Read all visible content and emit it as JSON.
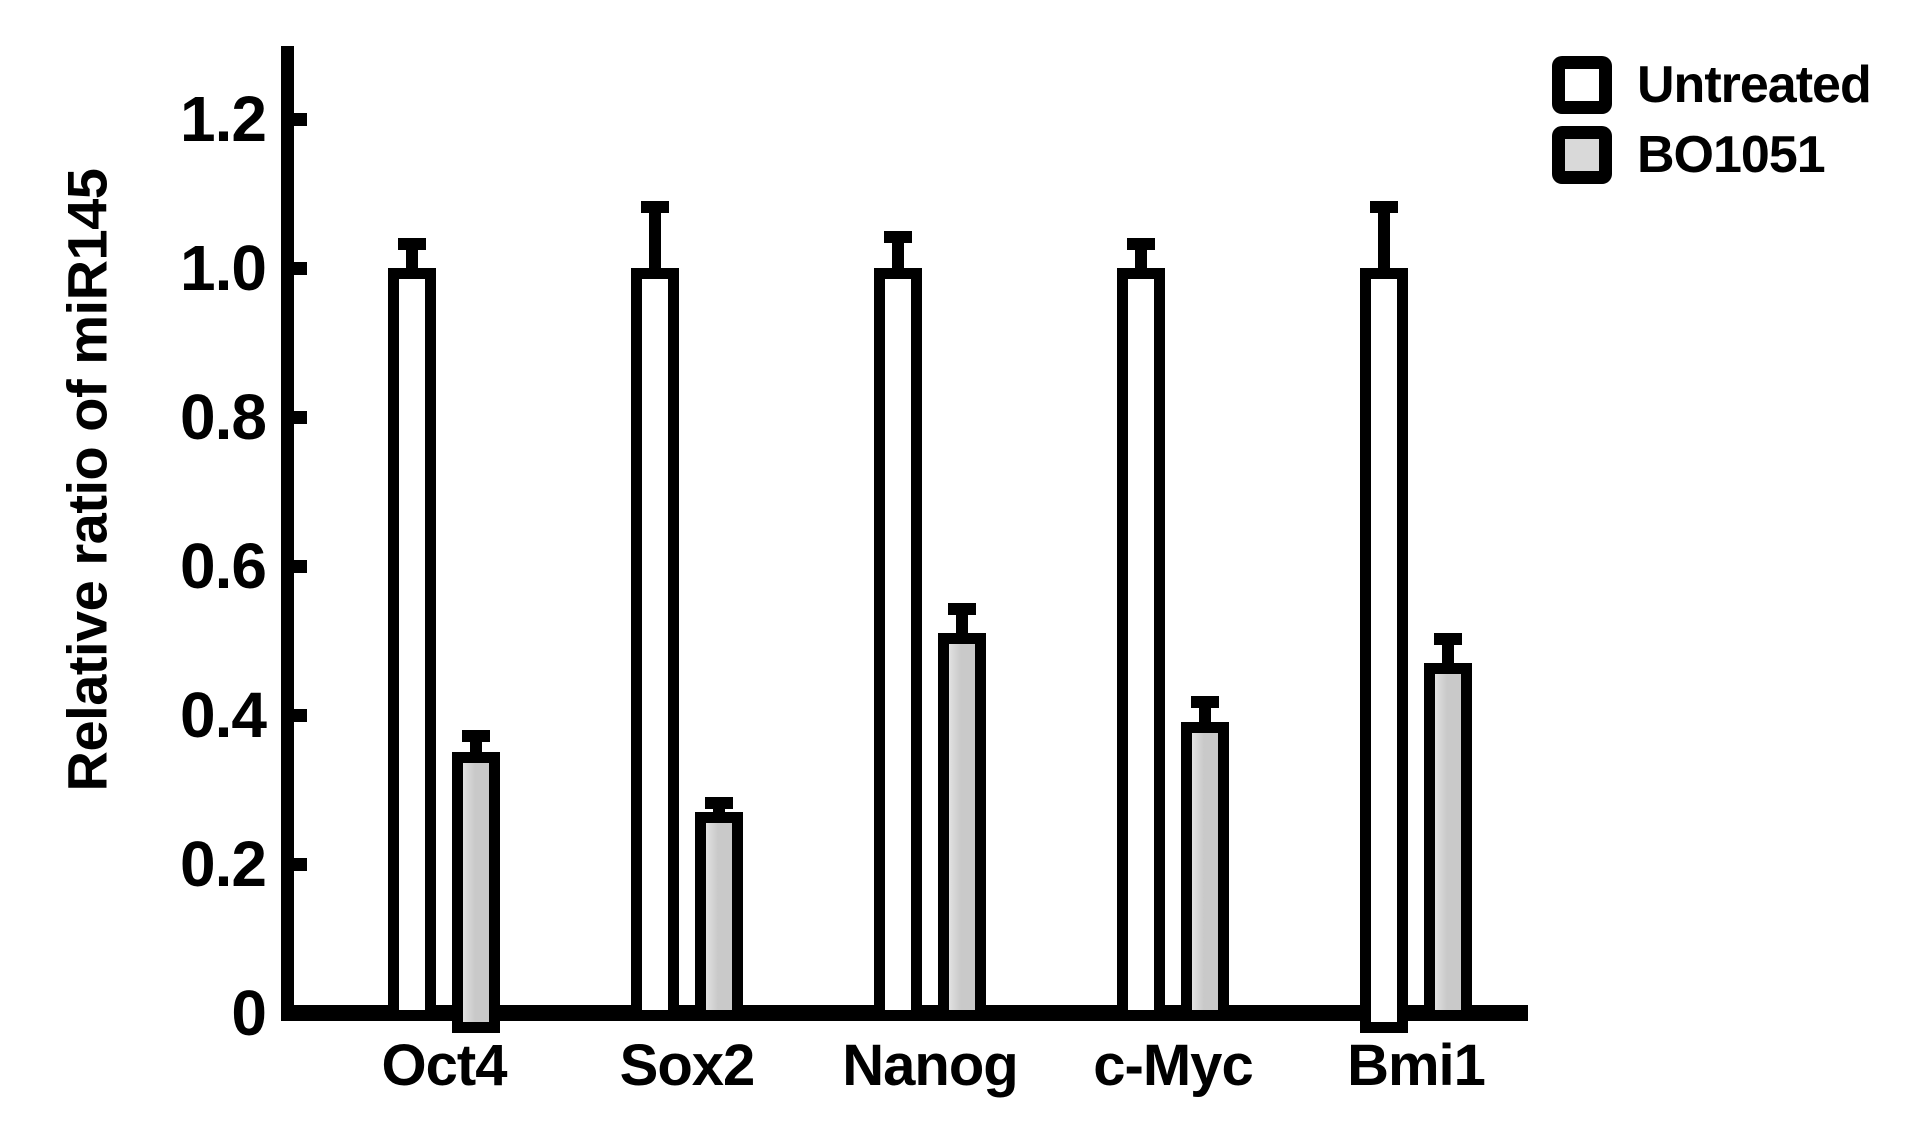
{
  "figure": {
    "background": "#ffffff",
    "ink": "#000000"
  },
  "chart_data": {
    "type": "bar",
    "title": "",
    "xlabel": "",
    "ylabel": "Relative ratio of miR145",
    "categories": [
      "Oct4",
      "Sox2",
      "Nanog",
      "c-Myc",
      "Bmi1"
    ],
    "series": [
      {
        "name": "Untreated",
        "fill": "#ffffff",
        "values": [
          1.0,
          1.0,
          1.0,
          1.0,
          1.0
        ],
        "error_upper": [
          0.04,
          0.09,
          0.05,
          0.04,
          0.09
        ]
      },
      {
        "name": "BO1051",
        "fill": "#c9c9c9",
        "values": [
          0.35,
          0.27,
          0.51,
          0.39,
          0.47
        ],
        "error_upper": [
          0.03,
          0.02,
          0.04,
          0.035,
          0.04
        ]
      }
    ],
    "ylim": [
      0,
      1.28
    ],
    "yticks": [
      1.2,
      1.0,
      0.8,
      0.6,
      0.4,
      0.2,
      0
    ],
    "ytick_labels": [
      "1.2",
      "1.0",
      "0.8",
      "0.6",
      "0.4",
      "0.2",
      "0"
    ],
    "grid": false,
    "error_bars": "upper-caps-only",
    "legend_position": "top-right"
  },
  "legend": {
    "items": [
      {
        "label": "Untreated",
        "swatch_fill": "#ffffff"
      },
      {
        "label": "BO1051",
        "swatch_fill": "#d9d9d9"
      }
    ]
  }
}
